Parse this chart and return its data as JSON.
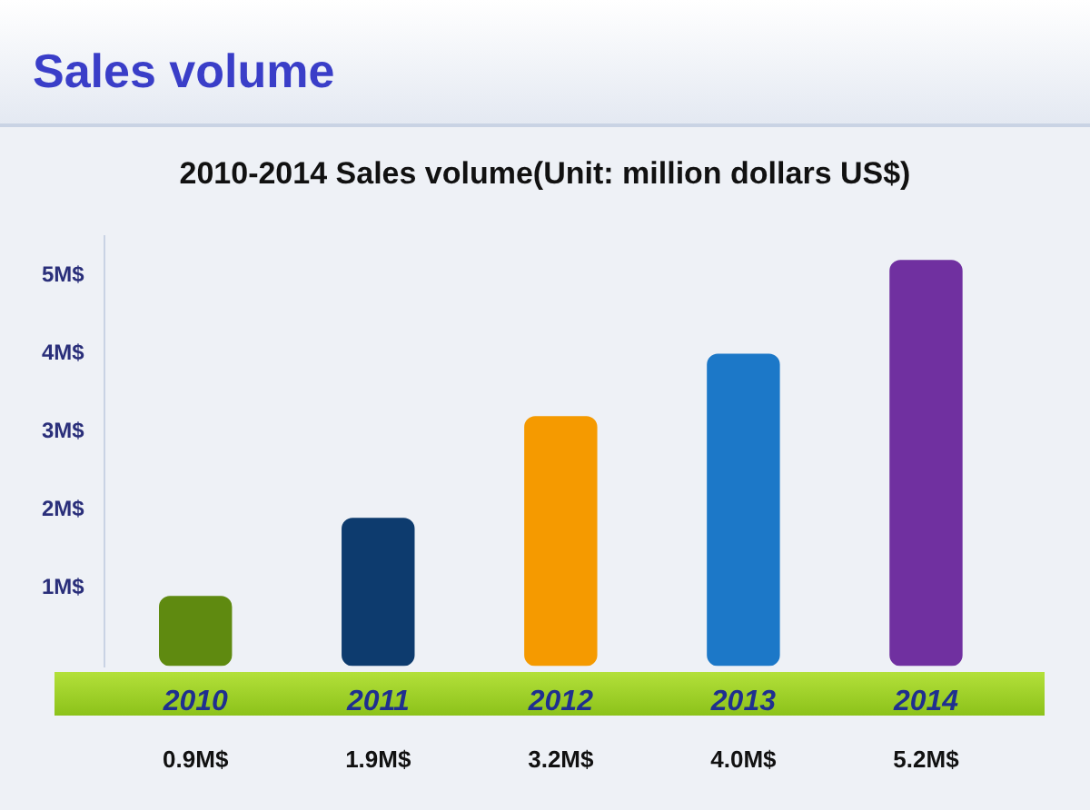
{
  "chart_data": {
    "type": "bar",
    "title": "Sales volume",
    "subtitle": "2010-2014 Sales volume(Unit: million dollars US$)",
    "categories": [
      "2010",
      "2011",
      "2012",
      "2013",
      "2014"
    ],
    "values": [
      0.9,
      1.9,
      3.2,
      4.0,
      5.2
    ],
    "colors": [
      "#5f8a10",
      "#0d3b6e",
      "#f59a00",
      "#1c78c8",
      "#7030a0"
    ],
    "value_labels": [
      "0.9M$",
      "1.9M$",
      "3.2M$",
      "4.0M$",
      "5.2M$"
    ],
    "ylim": [
      0,
      5.5
    ],
    "yticks": [
      {
        "value": 1,
        "label": "1M$"
      },
      {
        "value": 2,
        "label": "2M$"
      },
      {
        "value": 3,
        "label": "3M$"
      },
      {
        "value": 4,
        "label": "4M$"
      },
      {
        "value": 5,
        "label": "5M$"
      }
    ],
    "grid": false,
    "legend": false
  }
}
